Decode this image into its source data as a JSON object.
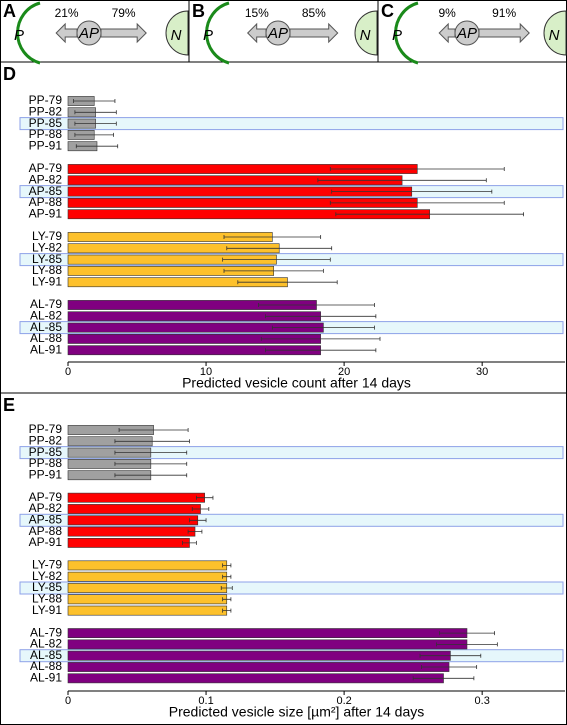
{
  "diagrams": [
    {
      "letter": "A",
      "left": "P",
      "center": "AP",
      "right": "N",
      "left_flow": {
        "value": 21,
        "label": "21%"
      },
      "right_flow": {
        "value": 79,
        "label": "79%"
      }
    },
    {
      "letter": "B",
      "left": "P",
      "center": "AP",
      "right": "N",
      "left_flow": {
        "value": 15,
        "label": "15%"
      },
      "right_flow": {
        "value": 85,
        "label": "85%"
      }
    },
    {
      "letter": "C",
      "left": "P",
      "center": "AP",
      "right": "N",
      "left_flow": {
        "value": 9,
        "label": "9%"
      },
      "right_flow": {
        "value": 91,
        "label": "91%"
      }
    }
  ],
  "chart_data": [
    {
      "type": "bar",
      "orientation": "horizontal",
      "letter": "D",
      "xlabel": "Predicted vesicle count after 14 days",
      "xlim": [
        0,
        36
      ],
      "xticks": [
        0,
        10,
        20,
        30
      ],
      "highlight_row": 2,
      "groups": [
        {
          "color": "#a0a0a0",
          "categories": [
            "PP-79",
            "PP-82",
            "PP-85",
            "PP-88",
            "PP-91"
          ],
          "values": [
            1.9,
            2.0,
            2.0,
            1.9,
            2.1
          ],
          "errors": [
            1.5,
            1.5,
            1.5,
            1.4,
            1.5
          ]
        },
        {
          "color": "#ff0000",
          "categories": [
            "AP-79",
            "AP-82",
            "AP-85",
            "AP-88",
            "AP-91"
          ],
          "values": [
            25.3,
            24.2,
            24.9,
            25.3,
            26.2
          ],
          "errors": [
            6.3,
            6.1,
            5.8,
            6.3,
            6.8
          ]
        },
        {
          "color": "#fdc12c",
          "categories": [
            "LY-79",
            "LY-82",
            "LY-85",
            "LY-88",
            "LY-91"
          ],
          "values": [
            14.8,
            15.3,
            15.1,
            14.9,
            15.9
          ],
          "errors": [
            3.5,
            3.8,
            3.9,
            3.6,
            3.6
          ]
        },
        {
          "color": "#800080",
          "categories": [
            "AL-79",
            "AL-82",
            "AL-85",
            "AL-88",
            "AL-91"
          ],
          "values": [
            18.0,
            18.3,
            18.5,
            18.3,
            18.3
          ],
          "errors": [
            4.2,
            4.0,
            3.7,
            4.3,
            4.0
          ]
        }
      ]
    },
    {
      "type": "bar",
      "orientation": "horizontal",
      "letter": "E",
      "xlabel": "Predicted vesicle size [µm²] after 14 days",
      "xlim": [
        0,
        0.36
      ],
      "xticks": [
        0,
        0.1,
        0.2,
        0.3
      ],
      "highlight_row": 2,
      "groups": [
        {
          "color": "#a0a0a0",
          "categories": [
            "PP-79",
            "PP-82",
            "PP-85",
            "PP-88",
            "PP-91"
          ],
          "values": [
            0.062,
            0.061,
            0.06,
            0.06,
            0.06
          ],
          "errors": [
            0.025,
            0.027,
            0.026,
            0.026,
            0.026
          ]
        },
        {
          "color": "#ff0000",
          "categories": [
            "AP-79",
            "AP-82",
            "AP-85",
            "AP-88",
            "AP-91"
          ],
          "values": [
            0.099,
            0.096,
            0.094,
            0.092,
            0.088
          ],
          "errors": [
            0.006,
            0.006,
            0.006,
            0.005,
            0.005
          ]
        },
        {
          "color": "#fdc12c",
          "categories": [
            "LY-79",
            "LY-82",
            "LY-85",
            "LY-88",
            "LY-91"
          ],
          "values": [
            0.115,
            0.115,
            0.115,
            0.115,
            0.115
          ],
          "errors": [
            0.003,
            0.003,
            0.004,
            0.003,
            0.003
          ]
        },
        {
          "color": "#800080",
          "categories": [
            "AL-79",
            "AL-82",
            "AL-85",
            "AL-88",
            "AL-91"
          ],
          "values": [
            0.289,
            0.289,
            0.277,
            0.276,
            0.272
          ],
          "errors": [
            0.02,
            0.022,
            0.022,
            0.02,
            0.022
          ]
        }
      ]
    }
  ]
}
